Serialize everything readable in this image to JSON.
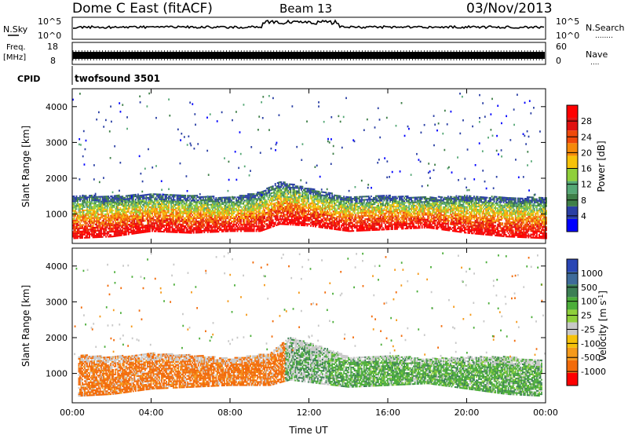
{
  "header": {
    "radar": "Dome C East (fitACF)",
    "beam": "Beam 13",
    "date": "03/Nov/2013"
  },
  "nsky_panel": {
    "left_label": "N.Sky",
    "right_label": "N.Search",
    "left_ticks": [
      "10^5",
      "10^0"
    ],
    "right_ticks": [
      "10^5",
      "10^0"
    ],
    "right_dots": "........"
  },
  "freq_panel": {
    "left_label_1": "Freq.",
    "left_label_2": "[MHz]",
    "right_label": "Nave",
    "left_ticks": [
      "18",
      "8"
    ],
    "right_ticks": [
      "60",
      "0"
    ],
    "right_dots": "...."
  },
  "cpid_panel": {
    "label": "CPID",
    "value": "twofsound 3501"
  },
  "colors": {
    "power_scale": [
      "#0000ff",
      "#2a3fa4",
      "#3f7f48",
      "#56a876",
      "#8fcf3a",
      "#f6c20a",
      "#f58a0a",
      "#f04a0a",
      "#e01010",
      "#ff0000"
    ],
    "velocity_scale": [
      "#2a46b4",
      "#3e6b9a",
      "#3c7f55",
      "#4cae3a",
      "#8fcf3a",
      "#c8c8c8",
      "#f6c20a",
      "#f59a1a",
      "#f26b0a",
      "#ff0000"
    ]
  },
  "chart_data": [
    {
      "type": "heatmap",
      "name": "power",
      "ylabel": "Slant Range [km]",
      "xlabel": "",
      "x_ticks": [
        "00:00",
        "04:00",
        "08:00",
        "12:00",
        "16:00",
        "20:00",
        "00:00"
      ],
      "y_ticks": [
        1000,
        2000,
        3000,
        4000
      ],
      "xlim": [
        0,
        24
      ],
      "ylim": [
        180,
        4500
      ],
      "colorbar": {
        "label": "Power [dB]",
        "ticks": [
          "4",
          "8",
          "12",
          "16",
          "20",
          "24",
          "28"
        ],
        "range": [
          0,
          30
        ]
      },
      "main_band_km": [
        {
          "t": 0,
          "lo": 300,
          "hi": 1500
        },
        {
          "t": 2,
          "lo": 350,
          "hi": 1500
        },
        {
          "t": 4,
          "lo": 500,
          "hi": 1550
        },
        {
          "t": 6,
          "lo": 450,
          "hi": 1500
        },
        {
          "t": 8,
          "lo": 500,
          "hi": 1450
        },
        {
          "t": 9.5,
          "lo": 500,
          "hi": 1600
        },
        {
          "t": 10.5,
          "lo": 700,
          "hi": 1900
        },
        {
          "t": 12,
          "lo": 650,
          "hi": 1700
        },
        {
          "t": 14,
          "lo": 500,
          "hi": 1450
        },
        {
          "t": 16,
          "lo": 550,
          "hi": 1500
        },
        {
          "t": 18,
          "lo": 600,
          "hi": 1450
        },
        {
          "t": 20,
          "lo": 450,
          "hi": 1500
        },
        {
          "t": 22,
          "lo": 350,
          "hi": 1450
        },
        {
          "t": 24,
          "lo": 300,
          "hi": 1450
        }
      ]
    },
    {
      "type": "heatmap",
      "name": "velocity",
      "ylabel": "Slant Range [km]",
      "xlabel": "Time UT",
      "x_ticks": [
        "00:00",
        "04:00",
        "08:00",
        "12:00",
        "16:00",
        "20:00",
        "00:00"
      ],
      "y_ticks": [
        1000,
        2000,
        3000,
        4000
      ],
      "xlim": [
        0,
        24
      ],
      "ylim": [
        180,
        4500
      ],
      "colorbar": {
        "label_1": "Velocity",
        "label_2": "[m s",
        "label_sup": "-1",
        "label_3": "]",
        "ticks": [
          "1000",
          "500",
          "100",
          "25",
          "-25",
          "-100",
          "-500",
          "-1000"
        ]
      },
      "main_band_km": [
        {
          "t": 0.3,
          "lo": 350,
          "hi": 1500
        },
        {
          "t": 2,
          "lo": 400,
          "hi": 1450
        },
        {
          "t": 4,
          "lo": 550,
          "hi": 1550
        },
        {
          "t": 6,
          "lo": 600,
          "hi": 1500
        },
        {
          "t": 8,
          "lo": 650,
          "hi": 1400
        },
        {
          "t": 10,
          "lo": 650,
          "hi": 1550
        },
        {
          "t": 11,
          "lo": 800,
          "hi": 2000
        },
        {
          "t": 12.5,
          "lo": 700,
          "hi": 1750
        },
        {
          "t": 14,
          "lo": 600,
          "hi": 1450
        },
        {
          "t": 16,
          "lo": 650,
          "hi": 1500
        },
        {
          "t": 18,
          "lo": 700,
          "hi": 1400
        },
        {
          "t": 20,
          "lo": 550,
          "hi": 1450
        },
        {
          "t": 22,
          "lo": 400,
          "hi": 1450
        },
        {
          "t": 23.8,
          "lo": 350,
          "hi": 1350
        }
      ]
    }
  ]
}
